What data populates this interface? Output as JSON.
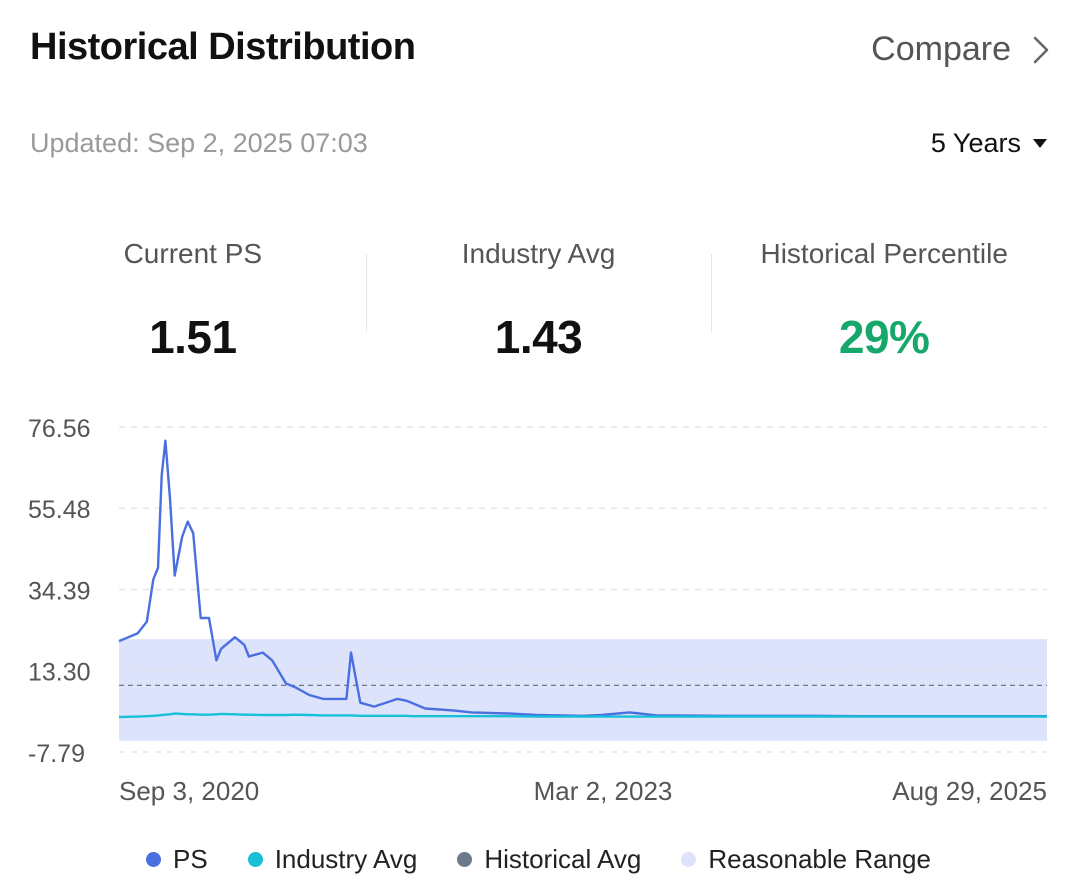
{
  "header": {
    "title": "Historical Distribution",
    "compare_label": "Compare",
    "updated": "Updated:  Sep 2, 2025 07:03",
    "range_label": "5 Years"
  },
  "stats": [
    {
      "label": "Current PS",
      "value": "1.51"
    },
    {
      "label": "Industry Avg",
      "value": "1.43"
    },
    {
      "label": "Historical Percentile",
      "value": "29%"
    }
  ],
  "colors": {
    "ps": "#4a6fe0",
    "industry": "#17c0d8",
    "historical": "#6c7a8c",
    "range": "#dde3fb",
    "percentile": "#16a86a"
  },
  "chart_data": {
    "type": "line",
    "x_ticks": [
      "Sep 3, 2020",
      "Mar 2, 2023",
      "Aug 29, 2025"
    ],
    "y_ticks": [
      "76.56",
      "55.48",
      "34.39",
      "13.30",
      "-7.79"
    ],
    "ylim": [
      -7.79,
      76.56
    ],
    "x": [
      0,
      0.02,
      0.03,
      0.037,
      0.042,
      0.046,
      0.05,
      0.055,
      0.06,
      0.068,
      0.074,
      0.08,
      0.088,
      0.097,
      0.105,
      0.11,
      0.125,
      0.135,
      0.14,
      0.155,
      0.165,
      0.18,
      0.19,
      0.205,
      0.22,
      0.245,
      0.25,
      0.26,
      0.275,
      0.3,
      0.31,
      0.315,
      0.33,
      0.36,
      0.38,
      0.42,
      0.45,
      0.5,
      0.52,
      0.55,
      0.58,
      0.6,
      0.65,
      0.7,
      0.75,
      0.8,
      0.85,
      0.9,
      0.95,
      1.0
    ],
    "series": [
      {
        "name": "PS",
        "values": [
          21,
          23,
          26,
          37,
          40,
          64,
          73,
          58,
          38,
          48,
          52,
          49,
          27,
          27,
          16,
          19,
          22,
          20,
          17,
          18,
          16,
          10,
          9,
          7,
          6,
          6,
          18,
          5,
          4,
          6,
          5.5,
          5,
          3.5,
          3,
          2.5,
          2.2,
          1.8,
          1.6,
          1.8,
          2.5,
          1.7,
          1.7,
          1.6,
          1.6,
          1.6,
          1.5,
          1.5,
          1.5,
          1.5,
          1.51
        ]
      },
      {
        "name": "Industry Avg",
        "values": [
          1.3,
          1.4,
          1.5,
          1.6,
          1.7,
          1.8,
          1.9,
          2.0,
          2.2,
          2.1,
          2.0,
          2.0,
          1.9,
          1.9,
          2.0,
          2.1,
          2.0,
          1.9,
          1.9,
          1.8,
          1.8,
          1.8,
          1.9,
          1.8,
          1.7,
          1.7,
          1.7,
          1.6,
          1.6,
          1.6,
          1.6,
          1.5,
          1.5,
          1.5,
          1.5,
          1.5,
          1.4,
          1.4,
          1.4,
          1.4,
          1.4,
          1.4,
          1.4,
          1.4,
          1.4,
          1.4,
          1.4,
          1.4,
          1.4,
          1.43
        ]
      }
    ],
    "historical_avg": 9.5,
    "reasonable_range": [
      -4.9,
      21.5
    ],
    "legend": [
      "PS",
      "Industry Avg",
      "Historical Avg",
      "Reasonable Range"
    ]
  }
}
